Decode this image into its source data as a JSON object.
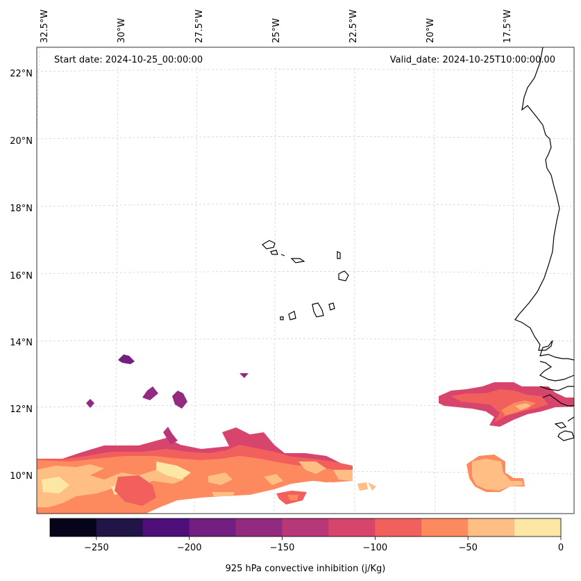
{
  "map": {
    "start_date_text": "Start date: 2024-10-25_00:00:00",
    "valid_date_text": "Valid_date: 2024-10-25T10:00:00.00",
    "lon_labels": [
      "32.5°W",
      "30°W",
      "27.5°W",
      "25°W",
      "22.5°W",
      "20°W",
      "17.5°W"
    ],
    "lat_labels": [
      "22°N",
      "20°N",
      "18°N",
      "16°N",
      "14°N",
      "12°N",
      "10°N"
    ],
    "gridlines": true,
    "coastline_color": "#000000",
    "field": "925 hPa convective inhibition"
  },
  "colorbar": {
    "label": "925 hPa convective inhibition (j/Kg)",
    "tick_labels": [
      "−250",
      "−200",
      "−150",
      "−100",
      "−50",
      "0"
    ],
    "range": [
      -275,
      0
    ],
    "levels": [
      -275,
      -250,
      -225,
      -200,
      -175,
      -150,
      -125,
      -100,
      -75,
      -50,
      -25,
      0
    ],
    "colors": [
      "#05041a",
      "#211447",
      "#4e0f7a",
      "#721f81",
      "#922a7f",
      "#b73779",
      "#d8456c",
      "#f1605d",
      "#fd8a5f",
      "#febe84",
      "#fde7a4"
    ]
  }
}
